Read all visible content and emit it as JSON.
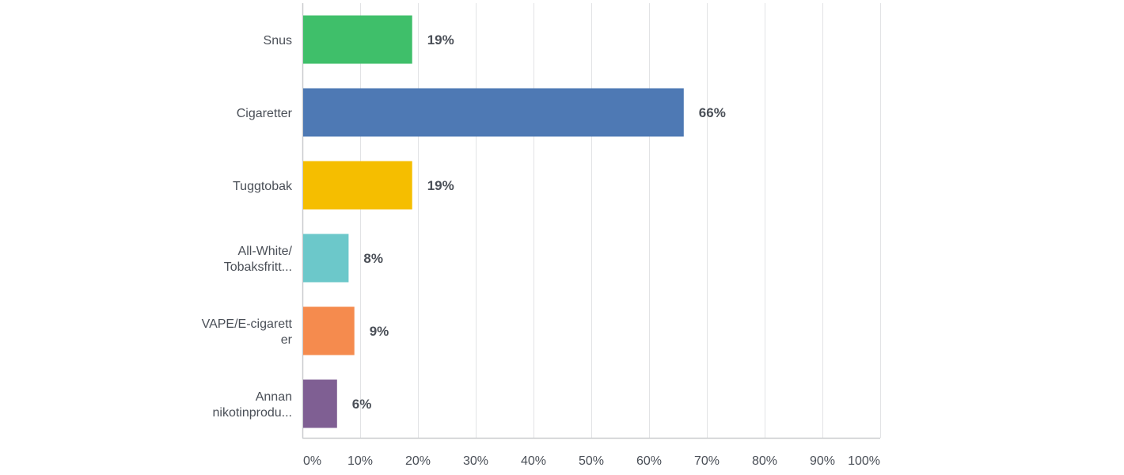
{
  "chart_data": {
    "type": "bar",
    "orientation": "horizontal",
    "title": "",
    "xlabel": "",
    "ylabel": "",
    "xlim": [
      0,
      100
    ],
    "grid": true,
    "legend": "none",
    "categories": [
      [
        "Snus"
      ],
      [
        "Cigaretter"
      ],
      [
        "Tuggtobak"
      ],
      [
        "All-White/",
        "Tobaksfritt..."
      ],
      [
        "VAPE/E-cigarett",
        "er"
      ],
      [
        "Annan",
        "nikotinprodu..."
      ]
    ],
    "values": [
      19,
      66,
      19,
      8,
      9,
      6
    ],
    "value_labels": [
      "19%",
      "66%",
      "19%",
      "8%",
      "9%",
      "6%"
    ],
    "colors": [
      "#3fbf6a",
      "#4e79b4",
      "#f5be00",
      "#6cc8ca",
      "#f58b4e",
      "#7f5f93"
    ],
    "ticks": [
      0,
      10,
      20,
      30,
      40,
      50,
      60,
      70,
      80,
      90,
      100
    ],
    "tick_labels": [
      "0%",
      "10%",
      "20%",
      "30%",
      "40%",
      "50%",
      "60%",
      "70%",
      "80%",
      "90%",
      "100%"
    ],
    "gridline_color": "#e2e3e5",
    "axis_color": "#c9cbce",
    "text_color": "#4a4f57"
  }
}
